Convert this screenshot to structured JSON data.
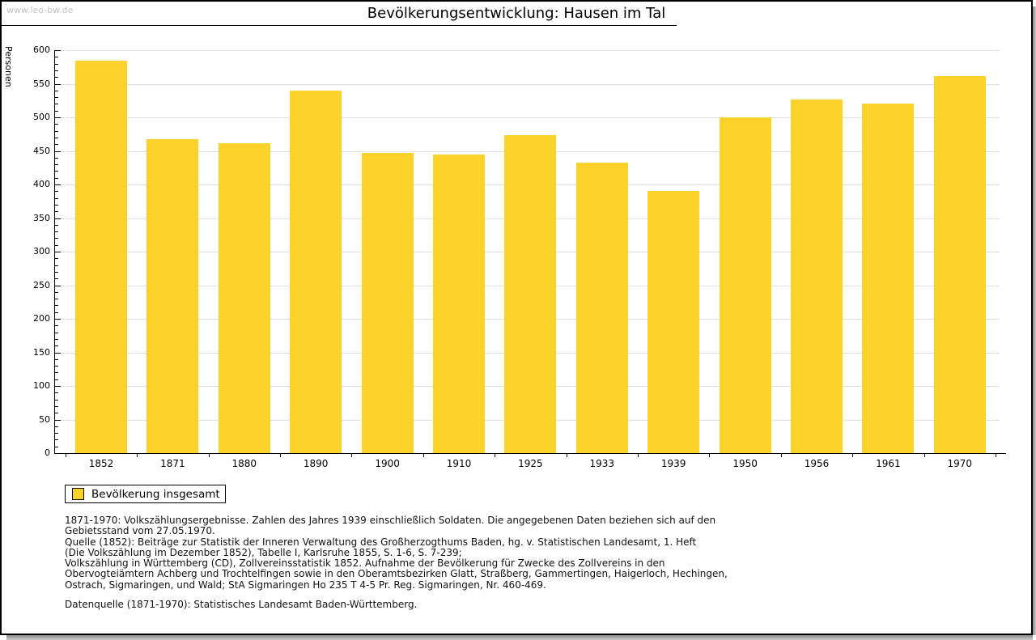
{
  "header": {
    "watermark": "www.leo-bw.de",
    "title": "Bevölkerungsentwicklung: Hausen im Tal"
  },
  "legend": {
    "label": "Bevölkerung insgesamt"
  },
  "chart_data": {
    "type": "bar",
    "title": "Bevölkerungsentwicklung: Hausen im Tal",
    "xlabel": "",
    "ylabel": "Personen",
    "ylim": [
      0,
      600
    ],
    "y_major_step": 50,
    "y_minor_step": 10,
    "grid": true,
    "legend_position": "bottom-left",
    "categories": [
      "1852",
      "1871",
      "1880",
      "1890",
      "1900",
      "1910",
      "1925",
      "1933",
      "1939",
      "1950",
      "1956",
      "1961",
      "1970"
    ],
    "series": [
      {
        "name": "Bevölkerung insgesamt",
        "values": [
          584,
          467,
          462,
          540,
          447,
          444,
          473,
          433,
          390,
          500,
          526,
          521,
          562
        ]
      }
    ]
  },
  "footer": {
    "notes": [
      "1871-1970: Volkszählungsergebnisse. Zahlen des Jahres 1939 einschließlich Soldaten. Die angegebenen Daten beziehen sich auf den",
      "Gebietsstand vom 27.05.1970.",
      "Quelle (1852): Beiträge zur Statistik der Inneren Verwaltung des Großherzogthums Baden, hg. v. Statistischen Landesamt, 1. Heft",
      "(Die Volkszählung im Dezember 1852), Tabelle I, Karlsruhe 1855, S. 1-6, S. 7-239;",
      "Volkszählung in Württemberg (CD), Zollvereinsstatistik 1852. Aufnahme der Bevölkerung für Zwecke des Zollvereins in den",
      "Obervogteiämtern Achberg und Trochtelfingen sowie in den Oberamtsbezirken Glatt, Straßberg, Gammertingen, Haigerloch, Hechingen,",
      "Ostrach, Sigmaringen, und Wald; StA Sigmaringen Ho 235 T 4-5 Pr. Reg. Sigmaringen, Nr. 460-469."
    ],
    "source": "Datenquelle (1871-1970): Statistisches Landesamt Baden-Württemberg."
  },
  "colors": {
    "bar": "#FDD32B",
    "grid": "#e0e0e0",
    "axis": "#000000",
    "watermark": "#c3c3c3"
  }
}
